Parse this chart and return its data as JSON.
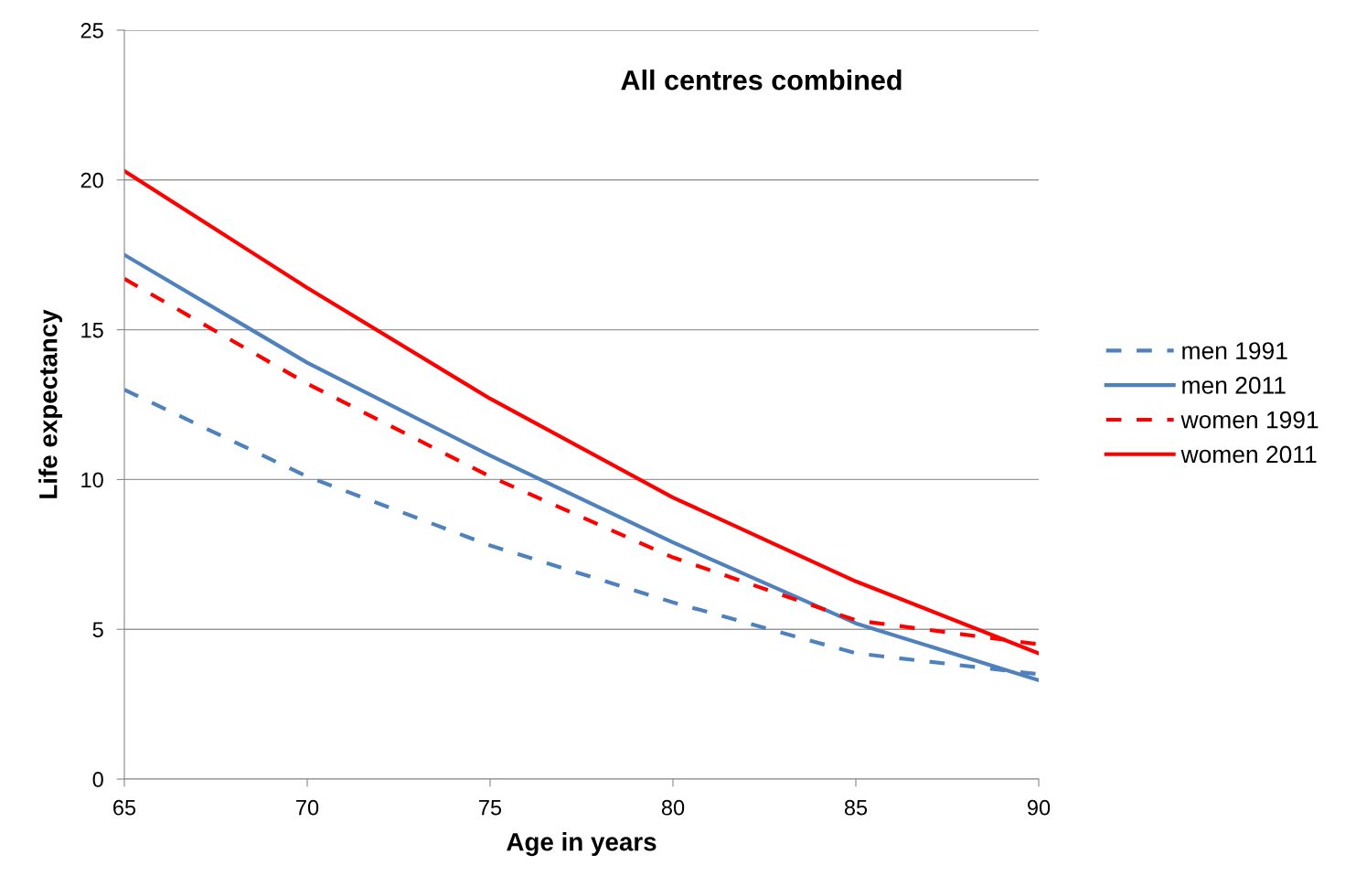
{
  "chart_data": {
    "type": "line",
    "title": "All centres combined",
    "xlabel": "Age in years",
    "ylabel": "Life expectancy",
    "x": [
      65,
      70,
      75,
      80,
      85,
      90
    ],
    "series": [
      {
        "name": "men 1991",
        "color": "#4f81bd",
        "line_style": "dashed",
        "values": [
          13.0,
          10.1,
          7.8,
          5.9,
          4.2,
          3.5
        ]
      },
      {
        "name": "men 2011",
        "color": "#4f81bd",
        "line_style": "solid",
        "values": [
          17.5,
          13.9,
          10.8,
          7.9,
          5.2,
          3.3
        ]
      },
      {
        "name": "women 1991",
        "color": "#ff0000",
        "line_style": "dashed",
        "values": [
          16.7,
          13.2,
          10.1,
          7.4,
          5.3,
          4.5
        ]
      },
      {
        "name": "women 2011",
        "color": "#ff0000",
        "line_style": "solid",
        "values": [
          20.3,
          16.4,
          12.7,
          9.4,
          6.6,
          4.2
        ]
      }
    ],
    "xlim": [
      65,
      90
    ],
    "xticks": [
      65,
      70,
      75,
      80,
      85,
      90
    ],
    "ylim": [
      0,
      25
    ],
    "yticks": [
      0,
      5,
      10,
      15,
      20,
      25
    ],
    "grid": "y",
    "legend": "right",
    "marker": "none"
  }
}
